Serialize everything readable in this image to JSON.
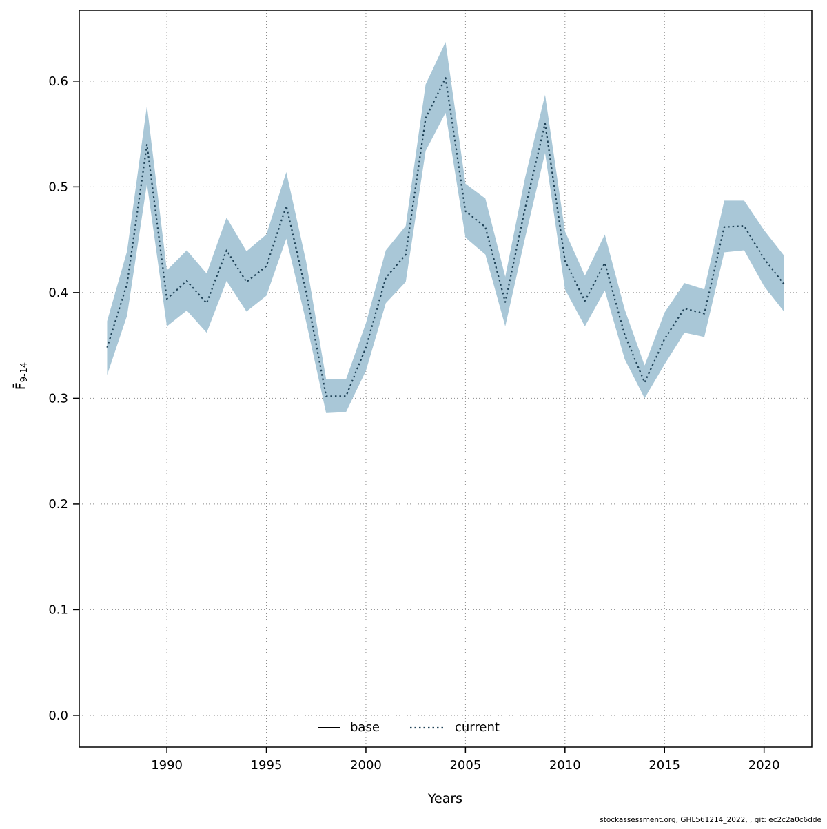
{
  "figure": {
    "background": "#ffffff",
    "footer_text": "stockassessment.org, GHL561214_2022, , git: ec2c2a0c6dde"
  },
  "axis": {
    "x_label": "Years",
    "y_label_main": "F̄",
    "y_label_sub": "9-14"
  },
  "chart_data": {
    "type": "line",
    "title": "",
    "xlabel": "Years",
    "ylabel": "F-bar ages 9-14 (mean fishing mortality)",
    "grid": true,
    "legend_position": "bottom-center",
    "xlim": [
      1985.6,
      2022.4
    ],
    "ylim": [
      -0.03,
      0.667
    ],
    "xticks": [
      1990,
      1995,
      2000,
      2005,
      2010,
      2015,
      2020
    ],
    "yticks": [
      0.0,
      0.1,
      0.2,
      0.3,
      0.4,
      0.5,
      0.6
    ],
    "band_color": "#a9c7d7",
    "line_color": "#1f4257",
    "x": [
      1987,
      1988,
      1989,
      1990,
      1991,
      1992,
      1993,
      1994,
      1995,
      1996,
      1997,
      1998,
      1999,
      2000,
      2001,
      2002,
      2003,
      2004,
      2005,
      2006,
      2007,
      2008,
      2009,
      2010,
      2011,
      2012,
      2013,
      2014,
      2015,
      2016,
      2017,
      2018,
      2019,
      2020,
      2021
    ],
    "series": [
      {
        "name": "current",
        "style": "dotted",
        "color": "#1f4257",
        "values": [
          0.348,
          0.408,
          0.54,
          0.394,
          0.411,
          0.39,
          0.44,
          0.41,
          0.425,
          0.482,
          0.4,
          0.302,
          0.302,
          0.348,
          0.414,
          0.436,
          0.565,
          0.603,
          0.477,
          0.462,
          0.391,
          0.48,
          0.56,
          0.43,
          0.392,
          0.428,
          0.36,
          0.315,
          0.356,
          0.385,
          0.38,
          0.462,
          0.463,
          0.432,
          0.408
        ],
        "lower": [
          0.322,
          0.378,
          0.503,
          0.368,
          0.383,
          0.362,
          0.411,
          0.382,
          0.397,
          0.451,
          0.372,
          0.286,
          0.287,
          0.326,
          0.39,
          0.41,
          0.534,
          0.57,
          0.452,
          0.436,
          0.368,
          0.452,
          0.532,
          0.403,
          0.368,
          0.402,
          0.337,
          0.3,
          0.332,
          0.362,
          0.358,
          0.438,
          0.44,
          0.406,
          0.382
        ],
        "upper": [
          0.373,
          0.439,
          0.577,
          0.421,
          0.44,
          0.418,
          0.471,
          0.439,
          0.455,
          0.514,
          0.429,
          0.318,
          0.318,
          0.371,
          0.44,
          0.463,
          0.597,
          0.637,
          0.503,
          0.489,
          0.415,
          0.509,
          0.587,
          0.458,
          0.416,
          0.455,
          0.384,
          0.331,
          0.381,
          0.409,
          0.403,
          0.487,
          0.487,
          0.459,
          0.435
        ]
      }
    ],
    "legend": [
      {
        "label": "base",
        "style": "solid",
        "color": "#000000"
      },
      {
        "label": "current",
        "style": "dotted",
        "color": "#1f4257"
      }
    ]
  }
}
